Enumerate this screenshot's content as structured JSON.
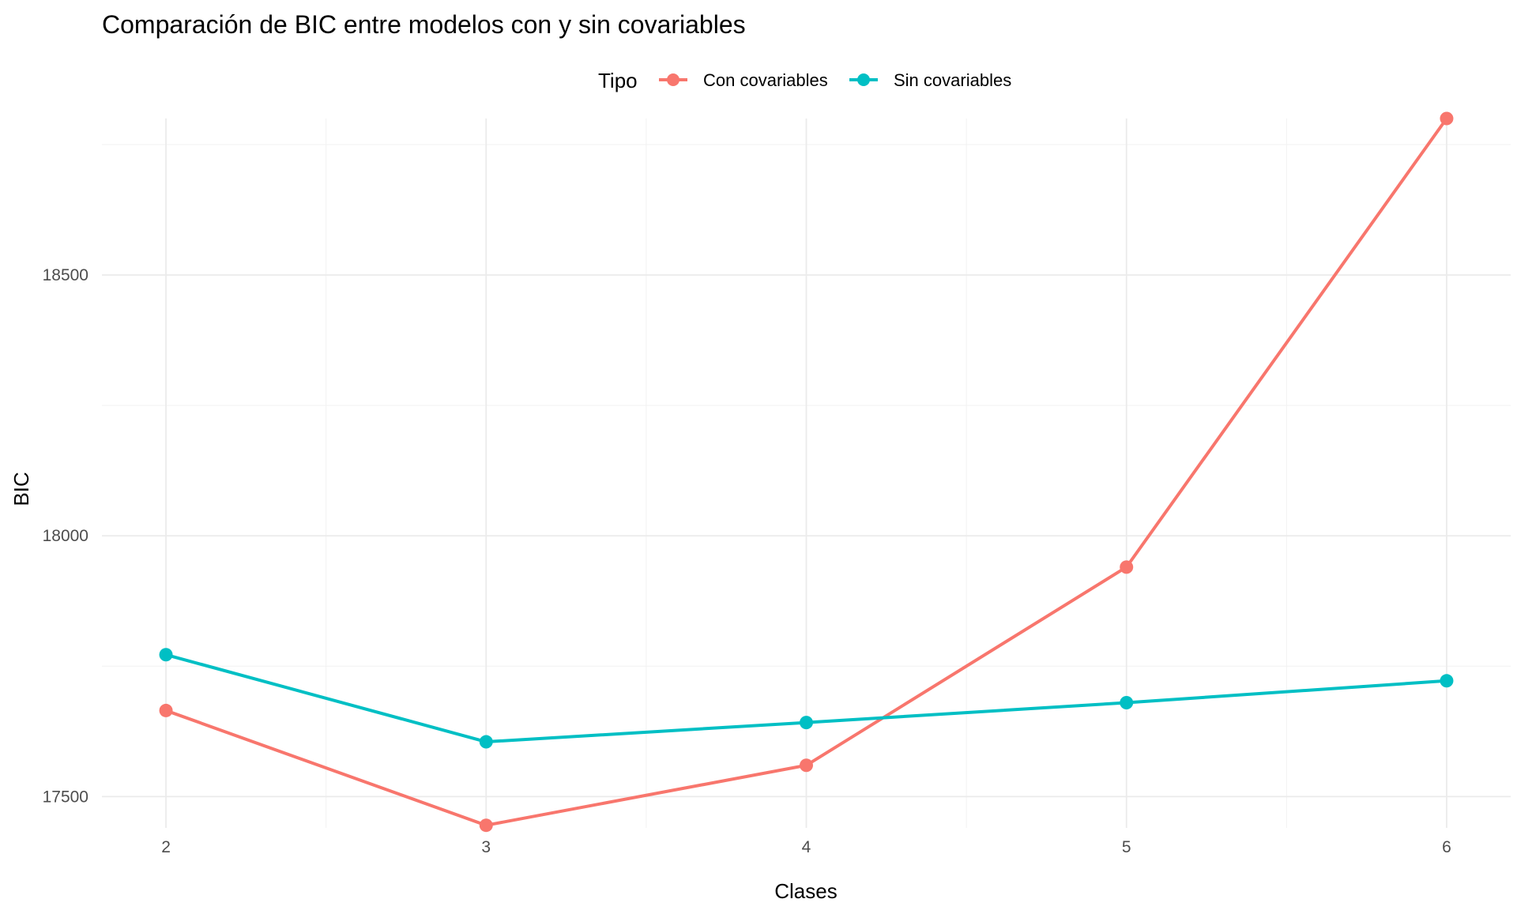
{
  "chart_data": {
    "type": "line",
    "title": "Comparación de BIC entre modelos con y sin covariables",
    "xlabel": "Clases",
    "ylabel": "BIC",
    "x": [
      2,
      3,
      4,
      5,
      6
    ],
    "x_tick_labels": [
      "2",
      "3",
      "4",
      "5",
      "6"
    ],
    "xlim": [
      1.8,
      6.2
    ],
    "y_ticks": [
      17500,
      18000,
      18500
    ],
    "y_tick_labels": [
      "17500",
      "18000",
      "18500"
    ],
    "ylim": [
      17440,
      18800
    ],
    "grid": true,
    "legend": {
      "title": "Tipo",
      "placement": "top"
    },
    "series": [
      {
        "name": "Con covariables",
        "color": "#F8766D",
        "values": [
          17665,
          17445,
          17560,
          17940,
          18800
        ]
      },
      {
        "name": "Sin covariables",
        "color": "#00BFC4",
        "values": [
          17772,
          17605,
          17642,
          17680,
          17722
        ]
      }
    ]
  }
}
